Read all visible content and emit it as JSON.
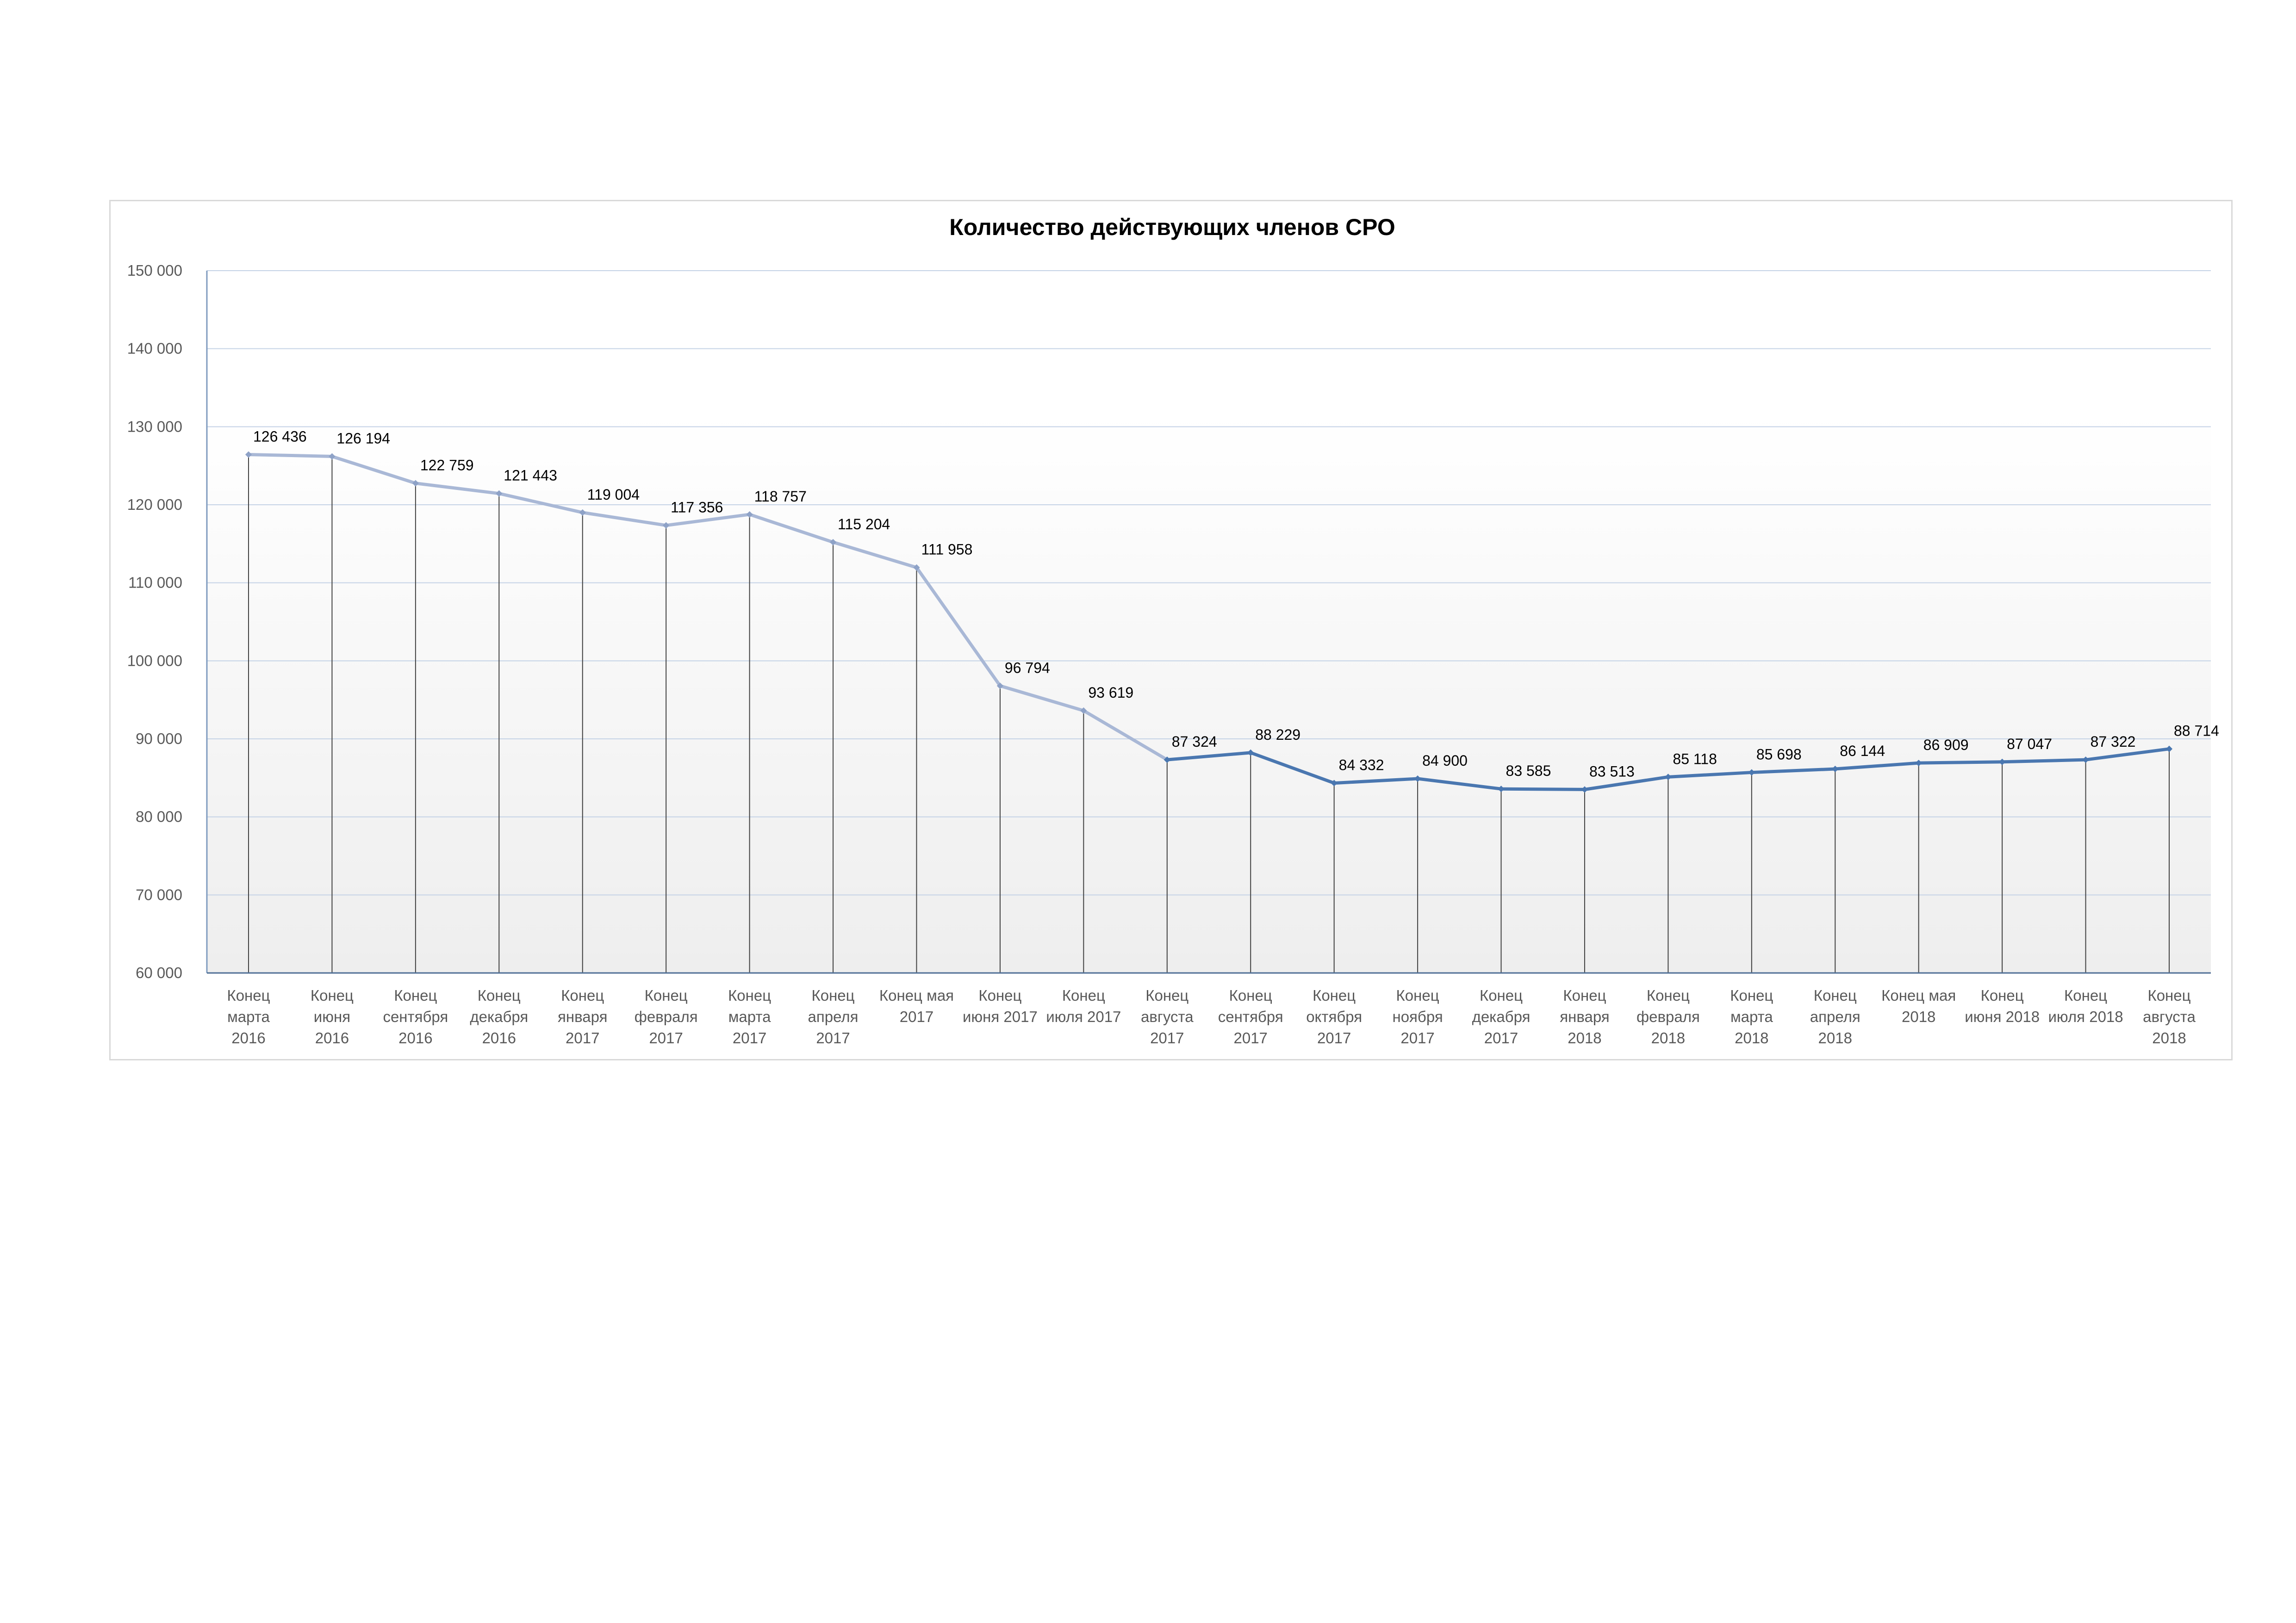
{
  "chart_data": {
    "type": "line",
    "title": "Количество действующих членов СРО",
    "xlabel": "",
    "ylabel": "",
    "ylim": [
      60000,
      150000
    ],
    "ytick_step": 10000,
    "grid": true,
    "legend": "none",
    "colors": {
      "early_line": "#a9b8d6",
      "late_line": "#4a77b0",
      "drop_line": "#404040",
      "axis": "#7f9bbf",
      "grid": "#c5d3e6"
    },
    "ytick_labels": [
      "60 000",
      "70 000",
      "80 000",
      "90 000",
      "100 000",
      "110 000",
      "120 000",
      "130 000",
      "140 000",
      "150 000"
    ],
    "categories": [
      [
        "Конец",
        "марта",
        "2016"
      ],
      [
        "Конец",
        "июня",
        "2016"
      ],
      [
        "Конец",
        "сентября",
        "2016"
      ],
      [
        "Конец",
        "декабря",
        "2016"
      ],
      [
        "Конец",
        "января",
        "2017"
      ],
      [
        "Конец",
        "февраля",
        "2017"
      ],
      [
        "Конец",
        "марта",
        "2017"
      ],
      [
        "Конец",
        "апреля",
        "2017"
      ],
      [
        "Конец мая",
        "2017"
      ],
      [
        "Конец",
        "июня 2017"
      ],
      [
        "Конец",
        "июля 2017"
      ],
      [
        "Конец",
        "августа",
        "2017"
      ],
      [
        "Конец",
        "сентября",
        "2017"
      ],
      [
        "Конец",
        "октября",
        "2017"
      ],
      [
        "Конец",
        "ноября",
        "2017"
      ],
      [
        "Конец",
        "декабря",
        "2017"
      ],
      [
        "Конец",
        "января",
        "2018"
      ],
      [
        "Конец",
        "февраля",
        "2018"
      ],
      [
        "Конец",
        "марта",
        "2018"
      ],
      [
        "Конец",
        "апреля",
        "2018"
      ],
      [
        "Конец мая",
        "2018"
      ],
      [
        "Конец",
        "июня 2018"
      ],
      [
        "Конец",
        "июля 2018"
      ],
      [
        "Конец",
        "августа",
        "2018"
      ]
    ],
    "series": [
      {
        "values": [
          126436,
          126194,
          122759,
          121443,
          119004,
          117356,
          118757,
          115204,
          111958,
          96794,
          93619,
          87324,
          88229,
          84332,
          84900,
          83585,
          83513,
          85118,
          85698,
          86144,
          86909,
          87047,
          87322,
          88714
        ],
        "labels": [
          "126 436",
          "126 194",
          "122 759",
          "121 443",
          "119 004",
          "117 356",
          "118 757",
          "115 204",
          "111 958",
          "96 794",
          "93 619",
          "87 324",
          "88 229",
          "84 332",
          "84 900",
          "83 585",
          "83 513",
          "85 118",
          "85 698",
          "86 144",
          "86 909",
          "87 047",
          "87 322",
          "88 714"
        ]
      }
    ]
  }
}
